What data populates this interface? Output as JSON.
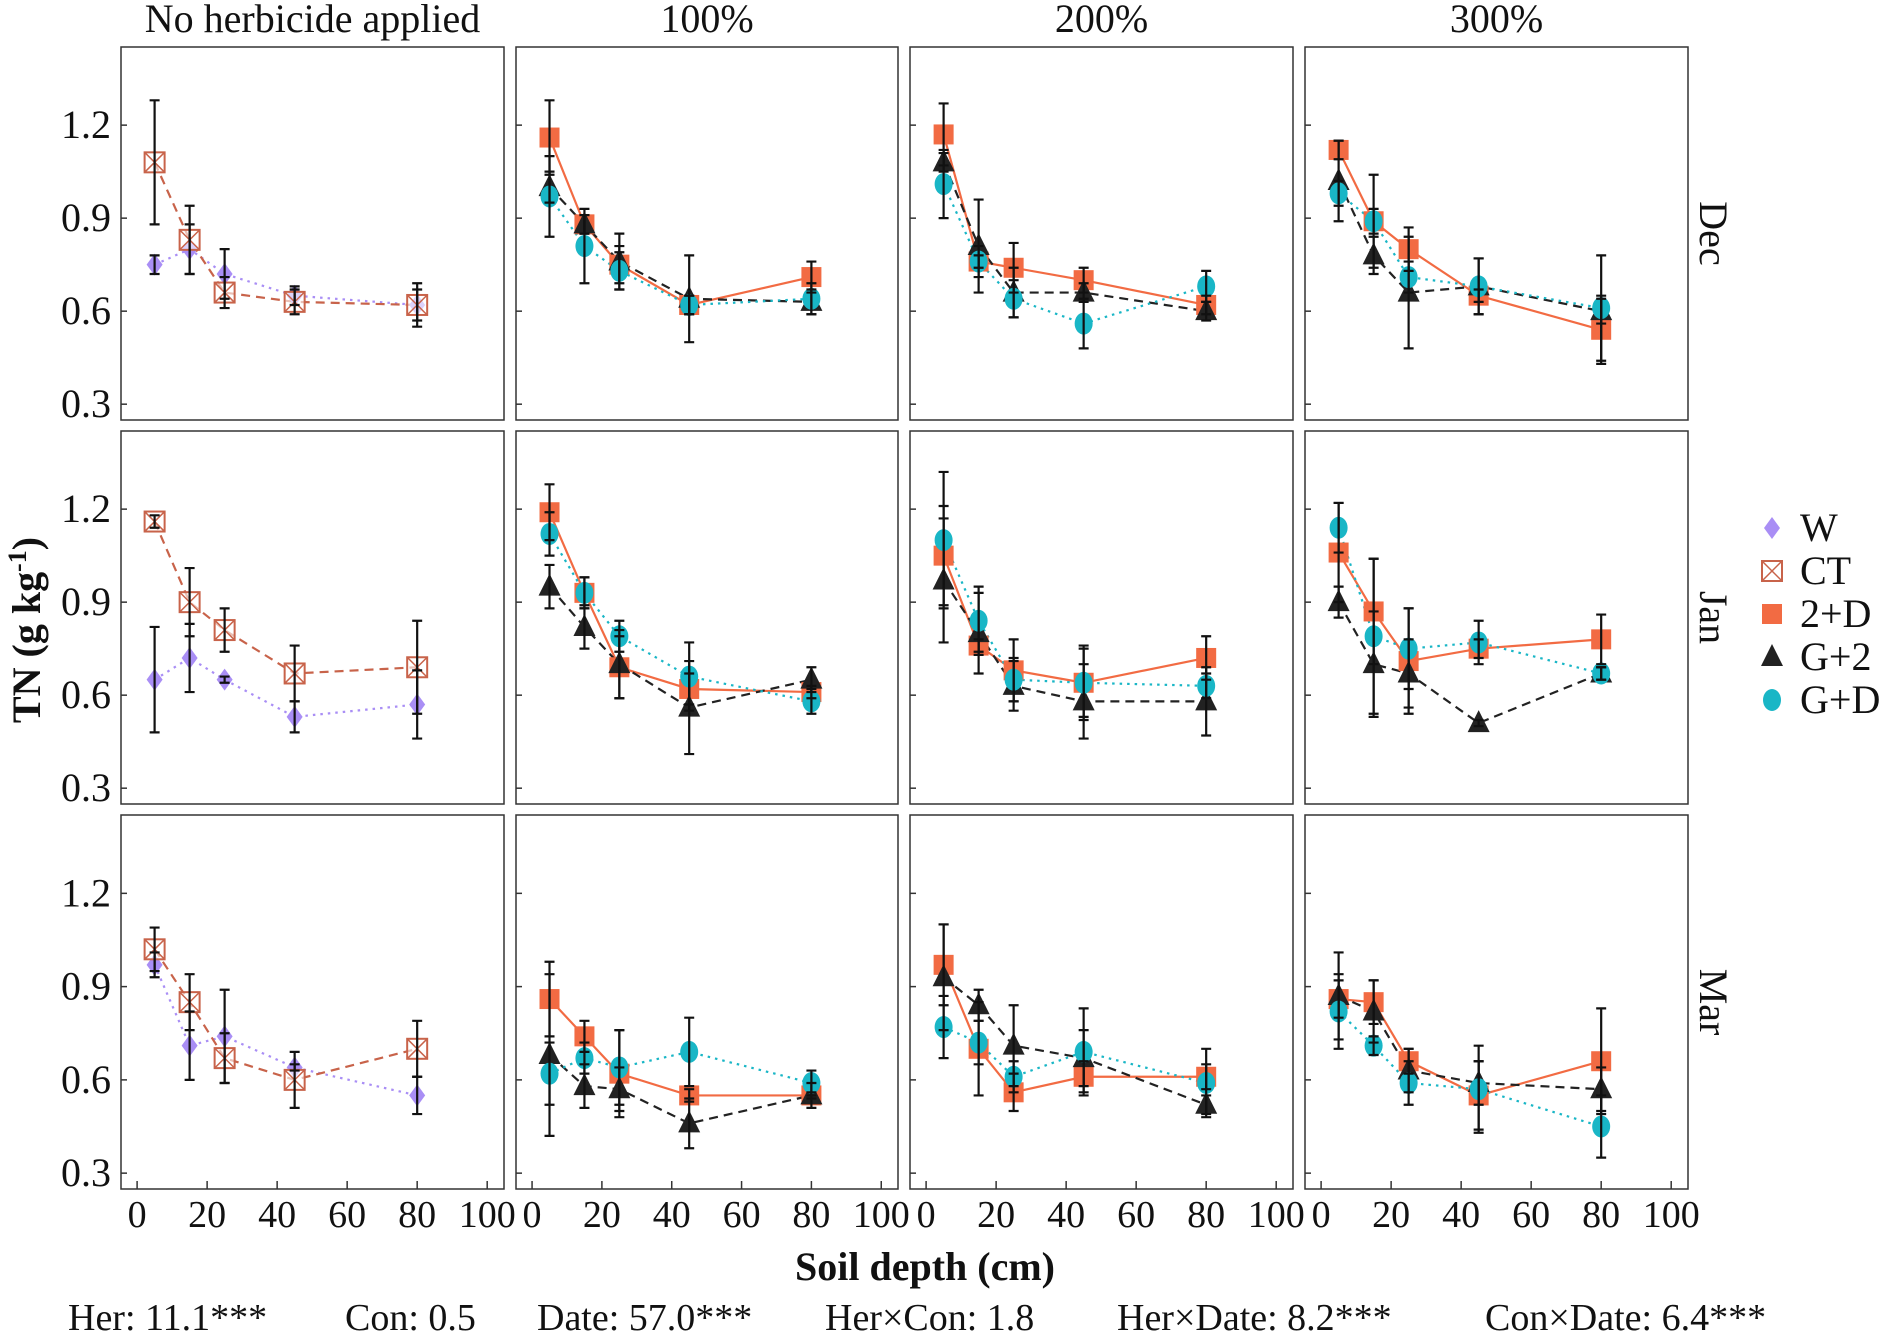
{
  "chart_data": {
    "type": "line",
    "layout": "facet-grid",
    "xlabel": "Soil depth (cm)",
    "ylabel": "TN (g kg-1)",
    "ylabel_parts": {
      "main": "TN (g kg",
      "sup": "-1",
      "close": ")"
    },
    "xlim": [
      -4.6,
      104.8
    ],
    "ylim": [
      0.249,
      1.452
    ],
    "xticks": [
      0,
      20,
      40,
      60,
      80,
      100
    ],
    "yticks": [
      0.3,
      0.6,
      0.9,
      1.2
    ],
    "ytick_labels": [
      "0.3",
      "0.6",
      "0.9",
      "1.2"
    ],
    "x": [
      5,
      15,
      25,
      45,
      80
    ],
    "columns": [
      "No herbicide applied",
      "100%",
      "200%",
      "300%"
    ],
    "rows": [
      "Dec",
      "Jan",
      "Mar"
    ],
    "legend": {
      "placement": "right",
      "entries": [
        {
          "name": "W",
          "color": "#a98ef5",
          "marker": "diamond",
          "line": "dotted"
        },
        {
          "name": "CT",
          "color": "#c8634a",
          "marker": "square-x",
          "line": "dashed"
        },
        {
          "name": "2+D",
          "color": "#f26b43",
          "marker": "square",
          "line": "solid"
        },
        {
          "name": "G+2",
          "color": "#222222",
          "marker": "triangle",
          "line": "dashed"
        },
        {
          "name": "G+D",
          "color": "#19b6c6",
          "marker": "circle",
          "line": "dotted"
        }
      ]
    },
    "panels": [
      {
        "row": "Dec",
        "col": "No herbicide applied",
        "series": [
          {
            "name": "W",
            "values": [
              0.75,
              0.8,
              0.72,
              0.65,
              0.62
            ],
            "err": [
              0.03,
              0.08,
              0.08,
              0.03,
              0.05
            ]
          },
          {
            "name": "CT",
            "values": [
              1.08,
              0.83,
              0.66,
              0.63,
              0.62
            ],
            "err": [
              0.2,
              0.11,
              0.05,
              0.04,
              0.07
            ]
          }
        ]
      },
      {
        "row": "Dec",
        "col": "100%",
        "series": [
          {
            "name": "2+D",
            "values": [
              1.16,
              0.88,
              0.75,
              0.62,
              0.71
            ],
            "err": [
              0.12,
              0.03,
              0.06,
              0.03,
              0.05
            ]
          },
          {
            "name": "G+2",
            "values": [
              1.0,
              0.88,
              0.76,
              0.64,
              0.63
            ],
            "err": [
              0.05,
              0.03,
              0.09,
              0.14,
              0.04
            ]
          },
          {
            "name": "G+D",
            "values": [
              0.97,
              0.81,
              0.73,
              0.62,
              0.64
            ],
            "err": [
              0.13,
              0.12,
              0.06,
              0.03,
              0.05
            ]
          }
        ]
      },
      {
        "row": "Dec",
        "col": "200%",
        "series": [
          {
            "name": "2+D",
            "values": [
              1.17,
              0.76,
              0.74,
              0.7,
              0.62
            ],
            "err": [
              0.1,
              0.02,
              0.08,
              0.04,
              0.03
            ]
          },
          {
            "name": "G+2",
            "values": [
              1.08,
              0.81,
              0.66,
              0.66,
              0.6
            ],
            "err": [
              0.03,
              0.15,
              0.08,
              0.03,
              0.03
            ]
          },
          {
            "name": "G+D",
            "values": [
              1.01,
              0.76,
              0.64,
              0.56,
              0.68
            ],
            "err": [
              0.11,
              0.05,
              0.06,
              0.08,
              0.05
            ]
          }
        ]
      },
      {
        "row": "Dec",
        "col": "300%",
        "series": [
          {
            "name": "2+D",
            "values": [
              1.12,
              0.89,
              0.8,
              0.65,
              0.54
            ],
            "err": [
              0.03,
              0.04,
              0.07,
              0.02,
              0.11
            ]
          },
          {
            "name": "G+2",
            "values": [
              1.02,
              0.78,
              0.66,
              0.68,
              0.6
            ],
            "err": [
              0.13,
              0.06,
              0.18,
              0.09,
              0.04
            ]
          },
          {
            "name": "G+D",
            "values": [
              0.98,
              0.89,
              0.71,
              0.68,
              0.61
            ],
            "err": [
              0.04,
              0.15,
              0.05,
              0.09,
              0.17
            ]
          }
        ]
      },
      {
        "row": "Jan",
        "col": "No herbicide applied",
        "series": [
          {
            "name": "W",
            "values": [
              0.65,
              0.72,
              0.65,
              0.53,
              0.57
            ],
            "err": [
              0.17,
              0.11,
              0.01,
              0.05,
              0.11
            ]
          },
          {
            "name": "CT",
            "values": [
              1.16,
              0.9,
              0.81,
              0.67,
              0.69
            ],
            "err": [
              0.02,
              0.11,
              0.07,
              0.09,
              0.15
            ]
          }
        ]
      },
      {
        "row": "Jan",
        "col": "100%",
        "series": [
          {
            "name": "2+D",
            "values": [
              1.19,
              0.93,
              0.69,
              0.62,
              0.61
            ],
            "err": [
              0.09,
              0.05,
              0.1,
              0.05,
              0.02
            ]
          },
          {
            "name": "G+2",
            "values": [
              0.95,
              0.82,
              0.7,
              0.56,
              0.65
            ],
            "err": [
              0.07,
              0.07,
              0.11,
              0.15,
              0.04
            ]
          },
          {
            "name": "G+D",
            "values": [
              1.12,
              0.93,
              0.79,
              0.66,
              0.58
            ],
            "err": [
              0.07,
              0.05,
              0.05,
              0.11,
              0.04
            ]
          }
        ]
      },
      {
        "row": "Jan",
        "col": "200%",
        "series": [
          {
            "name": "2+D",
            "values": [
              1.05,
              0.76,
              0.68,
              0.64,
              0.72
            ],
            "err": [
              0.16,
              0.02,
              0.1,
              0.12,
              0.07
            ]
          },
          {
            "name": "G+2",
            "values": [
              0.97,
              0.8,
              0.63,
              0.58,
              0.58
            ],
            "err": [
              0.2,
              0.13,
              0.08,
              0.12,
              0.11
            ]
          },
          {
            "name": "G+D",
            "values": [
              1.1,
              0.84,
              0.65,
              0.64,
              0.63
            ],
            "err": [
              0.22,
              0.11,
              0.07,
              0.11,
              0.04
            ]
          }
        ]
      },
      {
        "row": "Jan",
        "col": "300%",
        "series": [
          {
            "name": "2+D",
            "values": [
              1.06,
              0.87,
              0.71,
              0.75,
              0.78
            ],
            "err": [
              0.16,
              0.17,
              0.17,
              0.03,
              0.08
            ]
          },
          {
            "name": "G+2",
            "values": [
              0.9,
              0.7,
              0.67,
              0.51,
              0.67
            ],
            "err": [
              0.05,
              0.17,
              0.11,
              0.01,
              0.02
            ]
          },
          {
            "name": "G+D",
            "values": [
              1.14,
              0.79,
              0.75,
              0.77,
              0.67
            ],
            "err": [
              0.08,
              0.25,
              0.13,
              0.07,
              0.02
            ]
          }
        ]
      },
      {
        "row": "Mar",
        "col": "No herbicide applied",
        "series": [
          {
            "name": "W",
            "values": [
              0.97,
              0.71,
              0.74,
              0.64,
              0.55
            ],
            "err": [
              0.04,
              0.11,
              0.15,
              0.01,
              0.06
            ]
          },
          {
            "name": "CT",
            "values": [
              1.02,
              0.85,
              0.67,
              0.6,
              0.7
            ],
            "err": [
              0.07,
              0.09,
              0.08,
              0.09,
              0.09
            ]
          }
        ]
      },
      {
        "row": "Mar",
        "col": "100%",
        "series": [
          {
            "name": "2+D",
            "values": [
              0.86,
              0.74,
              0.62,
              0.55,
              0.55
            ],
            "err": [
              0.12,
              0.05,
              0.14,
              0.02,
              0.01
            ]
          },
          {
            "name": "G+2",
            "values": [
              0.68,
              0.58,
              0.57,
              0.46,
              0.55
            ],
            "err": [
              0.26,
              0.07,
              0.07,
              0.08,
              0.04
            ]
          },
          {
            "name": "G+D",
            "values": [
              0.62,
              0.67,
              0.64,
              0.69,
              0.59
            ],
            "err": [
              0.1,
              0.05,
              0.12,
              0.11,
              0.04
            ]
          }
        ]
      },
      {
        "row": "Mar",
        "col": "200%",
        "series": [
          {
            "name": "2+D",
            "values": [
              0.97,
              0.7,
              0.56,
              0.61,
              0.61
            ],
            "err": [
              0.13,
              0.15,
              0.06,
              0.05,
              0.04
            ]
          },
          {
            "name": "G+2",
            "values": [
              0.93,
              0.84,
              0.71,
              0.67,
              0.52
            ],
            "err": [
              0.17,
              0.05,
              0.13,
              0.09,
              0.03
            ]
          },
          {
            "name": "G+D",
            "values": [
              0.77,
              0.72,
              0.61,
              0.69,
              0.59
            ],
            "err": [
              0.1,
              0.07,
              0.05,
              0.14,
              0.11
            ]
          }
        ]
      },
      {
        "row": "Mar",
        "col": "300%",
        "series": [
          {
            "name": "2+D",
            "values": [
              0.86,
              0.85,
              0.66,
              0.55,
              0.66
            ],
            "err": [
              0.06,
              0.07,
              0.04,
              0.11,
              0.17
            ]
          },
          {
            "name": "G+2",
            "values": [
              0.87,
              0.82,
              0.63,
              0.59,
              0.57
            ],
            "err": [
              0.14,
              0.1,
              0.07,
              0.07,
              0.07
            ]
          },
          {
            "name": "G+D",
            "values": [
              0.82,
              0.71,
              0.59,
              0.57,
              0.45
            ],
            "err": [
              0.12,
              0.03,
              0.07,
              0.14,
              0.1
            ]
          }
        ]
      }
    ],
    "annotations": [
      "Her: 11.1***",
      "Con: 0.5",
      "Date: 57.0***",
      "Her×Con: 1.8",
      "Her×Date: 8.2***",
      "Con×Date: 6.4***"
    ]
  }
}
